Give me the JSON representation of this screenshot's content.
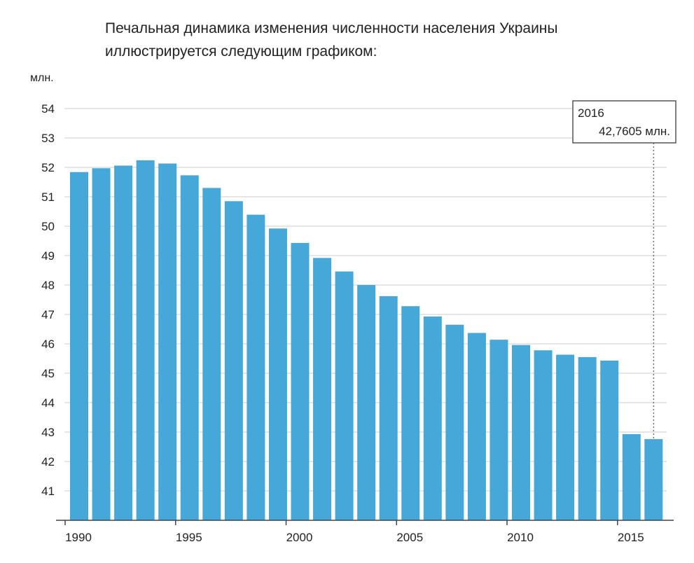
{
  "title": {
    "line1": "Печальная динамика изменения численности населения Украины",
    "line2": "иллюстрируется следующим графиком:"
  },
  "chart_data": {
    "type": "bar",
    "unit_label": "млн.",
    "color": "#45a8d8",
    "gridline_color": "#d8d8d8",
    "ylim": [
      40,
      55
    ],
    "yticks": [
      41,
      42,
      43,
      44,
      45,
      46,
      47,
      48,
      49,
      50,
      51,
      52,
      53,
      54
    ],
    "xticks": [
      1990,
      1995,
      2000,
      2005,
      2010,
      2015
    ],
    "categories": [
      1990,
      1991,
      1992,
      1993,
      1994,
      1995,
      1996,
      1997,
      1998,
      1999,
      2000,
      2001,
      2002,
      2003,
      2004,
      2005,
      2006,
      2007,
      2008,
      2009,
      2010,
      2011,
      2012,
      2013,
      2014,
      2015,
      2016
    ],
    "values": [
      51.84,
      51.97,
      52.06,
      52.24,
      52.13,
      51.73,
      51.3,
      50.85,
      50.39,
      49.92,
      49.43,
      48.92,
      48.46,
      48.0,
      47.62,
      47.28,
      46.93,
      46.65,
      46.37,
      46.14,
      45.96,
      45.78,
      45.63,
      45.55,
      45.43,
      42.93,
      42.76
    ],
    "annotation": {
      "year_label": "2016",
      "value_label": "42,7605 млн."
    }
  }
}
